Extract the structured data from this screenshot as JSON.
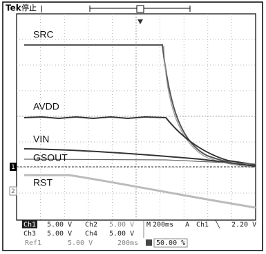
{
  "header": {
    "brand": "Tek",
    "status": "停止"
  },
  "traces": {
    "src": "SRC",
    "avdd": "AVDD",
    "vin": "VIN",
    "gsout": "GSOUT",
    "rst": "RST"
  },
  "markers": {
    "ch1": "1",
    "ch2": "2"
  },
  "readout": {
    "row1": {
      "ch1": "Ch1",
      "ch1_scale": "5.00 V",
      "ch2": "Ch2",
      "ch2_scale": "5.00 V",
      "m": "M",
      "timebase": "200ms",
      "a": "A",
      "trig_src": "Ch1",
      "trig_slope": "╲",
      "trig_level": "2.20 V"
    },
    "row2": {
      "ch3": "Ch3",
      "ch3_scale": "5.00 V",
      "ch4": "Ch4",
      "ch4_scale": "5.00 V"
    },
    "row3": {
      "ref": "Ref1",
      "ref_scale": "5.00 V",
      "ref_time": "200ms",
      "position": "50.00 %"
    }
  }
}
